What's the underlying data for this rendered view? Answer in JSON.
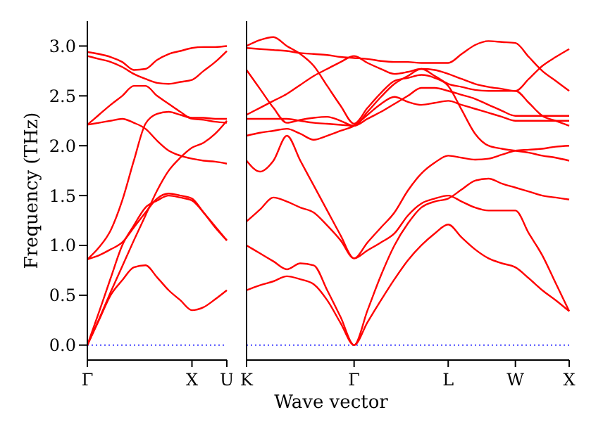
{
  "chart_data": [
    {
      "type": "line",
      "ylabel": "Frequency (THz)",
      "marker": "none",
      "line_style": "solid",
      "categories": [
        "Γ",
        null,
        null,
        null,
        null,
        null,
        null,
        null,
        null,
        "X",
        null,
        null,
        "U"
      ],
      "ylim": [
        -0.15,
        3.25
      ],
      "yticks": [
        {
          "value": 0,
          "label": "0.0"
        },
        {
          "value": 0.5,
          "label": "0.5"
        },
        {
          "value": 1,
          "label": "1.0"
        },
        {
          "value": 1.5,
          "label": "1.5"
        },
        {
          "value": 2,
          "label": "2.0"
        },
        {
          "value": 2.5,
          "label": "2.5"
        },
        {
          "value": 3,
          "label": "3.0"
        }
      ],
      "ref_lines": [
        {
          "axis": "y",
          "value": 0,
          "color": "#0000ff",
          "line_style": "dotted"
        }
      ],
      "series": [
        {
          "color": "#ff0000",
          "values": [
            0,
            0.25,
            0.5,
            0.65,
            0.78,
            0.8,
            0.68,
            0.55,
            0.45,
            0.35,
            0.38,
            0.46,
            0.55
          ]
        },
        {
          "color": "#ff0000",
          "values": [
            0,
            0.33,
            0.67,
            1.0,
            1.2,
            1.38,
            1.45,
            1.5,
            1.48,
            1.45,
            1.33,
            1.18,
            1.05
          ]
        },
        {
          "color": "#ff0000",
          "values": [
            0,
            0.26,
            0.53,
            0.79,
            1.05,
            1.3,
            1.55,
            1.75,
            1.88,
            1.98,
            2.03,
            2.12,
            2.25
          ]
        },
        {
          "color": "#ff0000",
          "values": [
            0.86,
            0.98,
            1.15,
            1.45,
            1.85,
            2.22,
            2.32,
            2.34,
            2.31,
            2.28,
            2.28,
            2.27,
            2.27
          ]
        },
        {
          "color": "#ff0000",
          "values": [
            0.86,
            0.9,
            0.96,
            1.03,
            1.18,
            1.33,
            1.47,
            1.52,
            1.5,
            1.47,
            1.33,
            1.19,
            1.05
          ]
        },
        {
          "color": "#ff0000",
          "values": [
            2.21,
            2.31,
            2.41,
            2.5,
            2.6,
            2.6,
            2.5,
            2.42,
            2.34,
            2.27,
            2.26,
            2.24,
            2.23
          ]
        },
        {
          "color": "#ff0000",
          "values": [
            2.21,
            2.23,
            2.25,
            2.27,
            2.23,
            2.17,
            2.05,
            1.95,
            1.9,
            1.87,
            1.85,
            1.84,
            1.82
          ]
        },
        {
          "color": "#ff0000",
          "values": [
            2.94,
            2.92,
            2.89,
            2.84,
            2.76,
            2.77,
            2.86,
            2.92,
            2.95,
            2.98,
            2.99,
            2.99,
            3.0
          ]
        },
        {
          "color": "#ff0000",
          "values": [
            2.9,
            2.87,
            2.84,
            2.79,
            2.72,
            2.67,
            2.63,
            2.62,
            2.64,
            2.66,
            2.75,
            2.84,
            2.95
          ]
        }
      ]
    },
    {
      "type": "line",
      "xlabel": "Wave vector",
      "marker": "none",
      "line_style": "solid",
      "tick_labels": "x",
      "categories": [
        "K",
        null,
        null,
        null,
        null,
        null,
        null,
        null,
        "Γ",
        null,
        null,
        null,
        null,
        null,
        null,
        "L",
        null,
        null,
        null,
        null,
        "W",
        null,
        null,
        null,
        "X"
      ],
      "ylim": [
        -0.15,
        3.25
      ],
      "yticks": [
        {
          "value": 0,
          "label": null
        },
        {
          "value": 0.5,
          "label": null
        },
        {
          "value": 1,
          "label": null
        },
        {
          "value": 1.5,
          "label": null
        },
        {
          "value": 2,
          "label": null
        },
        {
          "value": 2.5,
          "label": null
        },
        {
          "value": 3,
          "label": null
        }
      ],
      "ref_lines": [
        {
          "axis": "y",
          "value": 0,
          "color": "#0000ff",
          "line_style": "dotted"
        }
      ],
      "series": [
        {
          "color": "#ff0000",
          "values": [
            0.55,
            0.6,
            0.64,
            0.69,
            0.66,
            0.61,
            0.45,
            0.22,
            0,
            0.23,
            0.45,
            0.66,
            0.85,
            1.0,
            1.12,
            1.21,
            1.08,
            0.96,
            0.87,
            0.82,
            0.78,
            0.67,
            0.55,
            0.45,
            0.34
          ]
        },
        {
          "color": "#ff0000",
          "values": [
            1.0,
            0.92,
            0.84,
            0.76,
            0.82,
            0.8,
            0.55,
            0.28,
            0,
            0.35,
            0.7,
            1.0,
            1.22,
            1.38,
            1.44,
            1.47,
            1.56,
            1.65,
            1.67,
            1.62,
            1.58,
            1.54,
            1.5,
            1.48,
            1.46
          ]
        },
        {
          "color": "#ff0000",
          "values": [
            1.24,
            1.36,
            1.48,
            1.44,
            1.38,
            1.33,
            1.2,
            1.05,
            0.87,
            0.95,
            1.03,
            1.12,
            1.3,
            1.42,
            1.47,
            1.5,
            1.44,
            1.38,
            1.35,
            1.35,
            1.35,
            1.12,
            0.9,
            0.62,
            0.34
          ]
        },
        {
          "color": "#ff0000",
          "values": [
            1.85,
            1.74,
            1.85,
            2.1,
            1.85,
            1.6,
            1.35,
            1.1,
            0.87,
            1.03,
            1.18,
            1.33,
            1.55,
            1.72,
            1.83,
            1.9,
            1.88,
            1.86,
            1.87,
            1.91,
            1.95,
            1.96,
            1.97,
            1.99,
            2.0
          ]
        },
        {
          "color": "#ff0000",
          "values": [
            2.1,
            2.13,
            2.15,
            2.17,
            2.12,
            2.06,
            2.1,
            2.15,
            2.2,
            2.31,
            2.42,
            2.49,
            2.44,
            2.41,
            2.43,
            2.45,
            2.41,
            2.37,
            2.33,
            2.29,
            2.25,
            2.25,
            2.25,
            2.25,
            2.25
          ]
        },
        {
          "color": "#ff0000",
          "values": [
            2.27,
            2.27,
            2.27,
            2.27,
            2.25,
            2.23,
            2.22,
            2.21,
            2.2,
            2.27,
            2.34,
            2.42,
            2.5,
            2.58,
            2.58,
            2.55,
            2.51,
            2.47,
            2.41,
            2.35,
            2.3,
            2.3,
            2.3,
            2.3,
            2.3
          ]
        },
        {
          "color": "#ff0000",
          "values": [
            2.31,
            2.38,
            2.45,
            2.52,
            2.61,
            2.7,
            2.77,
            2.84,
            2.9,
            2.83,
            2.77,
            2.72,
            2.74,
            2.77,
            2.76,
            2.72,
            2.67,
            2.62,
            2.59,
            2.57,
            2.55,
            2.67,
            2.8,
            2.89,
            2.97
          ]
        },
        {
          "color": "#ff0000",
          "values": [
            2.76,
            2.57,
            2.38,
            2.23,
            2.26,
            2.28,
            2.29,
            2.25,
            2.2,
            2.34,
            2.49,
            2.62,
            2.7,
            2.77,
            2.7,
            2.62,
            2.59,
            2.56,
            2.55,
            2.55,
            2.55,
            2.43,
            2.3,
            2.25,
            2.2
          ]
        },
        {
          "color": "#ff0000",
          "values": [
            3.0,
            3.06,
            3.09,
            3.0,
            2.92,
            2.8,
            2.6,
            2.4,
            2.22,
            2.38,
            2.53,
            2.65,
            2.68,
            2.71,
            2.68,
            2.6,
            2.36,
            2.12,
            2.0,
            1.97,
            1.95,
            1.93,
            1.9,
            1.88,
            1.85
          ]
        },
        {
          "color": "#ff0000",
          "values": [
            2.98,
            2.97,
            2.96,
            2.95,
            2.93,
            2.92,
            2.91,
            2.89,
            2.88,
            2.87,
            2.85,
            2.84,
            2.84,
            2.83,
            2.83,
            2.83,
            2.92,
            3.01,
            3.05,
            3.04,
            3.03,
            2.89,
            2.75,
            2.65,
            2.55
          ]
        }
      ]
    }
  ]
}
